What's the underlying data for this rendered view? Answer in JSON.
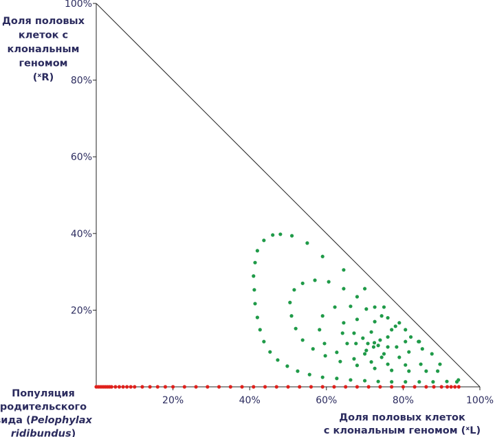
{
  "chart_data": {
    "type": "scatter",
    "y_label_lines": [
      "Доля половых",
      "клеток  с",
      "клональным",
      "геномом",
      "(ˣR)"
    ],
    "x_label_lines": [
      "Доля половых клеток",
      "с клональным геномом (ˣL)"
    ],
    "annotation_lines": [
      [
        {
          "text": "Популяция"
        }
      ],
      [
        {
          "text": "родительского"
        }
      ],
      [
        {
          "text": "вида ("
        },
        {
          "text": "Pelophylax",
          "italic": true
        }
      ],
      [
        {
          "text": "ridibundus",
          "italic": true
        },
        {
          "text": ")"
        }
      ]
    ],
    "xlim": [
      0,
      100
    ],
    "ylim": [
      0,
      100
    ],
    "xticks": [
      {
        "value": 20,
        "label": "20%"
      },
      {
        "value": 40,
        "label": "40%"
      },
      {
        "value": 60,
        "label": "60%"
      },
      {
        "value": 80,
        "label": "80%"
      },
      {
        "value": 100,
        "label": "100%"
      }
    ],
    "yticks": [
      {
        "value": 20,
        "label": "20%"
      },
      {
        "value": 40,
        "label": "40%"
      },
      {
        "value": 60,
        "label": "60%"
      },
      {
        "value": 80,
        "label": "80%"
      },
      {
        "value": 100,
        "label": "100%"
      }
    ],
    "series": [
      {
        "color": "#1f9a48",
        "x": [
          46,
          48,
          51,
          55,
          59,
          64.5,
          70,
          75,
          79,
          84,
          89.6,
          94.4,
          43.7,
          42,
          41.4,
          41,
          41.2,
          41.4,
          42,
          42.7,
          43.7,
          45.3,
          47.3,
          49.8,
          52.5,
          55.6,
          59,
          62.7,
          66.3,
          70,
          73.5,
          77,
          80.6,
          84.2,
          87.8,
          91.4,
          94,
          57,
          53.8,
          60.6,
          64.5,
          68,
          72.6,
          76,
          80.6,
          84.2,
          87.5,
          51.6,
          50.5,
          50.9,
          52,
          53.8,
          56.5,
          59.7,
          63.6,
          68,
          72.6,
          77,
          81.5,
          86,
          89,
          62.2,
          66.3,
          70.4,
          74.4,
          78,
          82,
          85,
          59,
          58.2,
          59.5,
          62.7,
          67.2,
          71.7,
          76,
          80.6,
          84.6,
          64.5,
          68,
          72.6,
          77,
          80.6,
          81.5,
          79,
          74.4,
          70,
          65.4,
          64.2,
          67.2,
          71.7,
          76,
          78.3,
          75,
          70.4,
          67.7,
          69.5,
          74,
          76,
          72.3,
          70.8,
          72.5,
          73.5
        ],
        "values": [
          39.6,
          39.8,
          39.4,
          37.5,
          34,
          30.5,
          25.6,
          20.8,
          16.7,
          11.8,
          5.9,
          1.8,
          38.2,
          35.5,
          32.4,
          28.9,
          25.3,
          21.7,
          18.1,
          14.9,
          11.8,
          9.1,
          7,
          5.4,
          4.1,
          3.2,
          2.5,
          2.2,
          1.8,
          1.6,
          1.4,
          1.3,
          1.3,
          1.3,
          1.3,
          1.4,
          1.3,
          27.8,
          27,
          27.4,
          25.6,
          23.5,
          20.8,
          18,
          14.9,
          11.8,
          8.6,
          25.3,
          22,
          18.5,
          15.2,
          12.2,
          9.9,
          8.1,
          6.6,
          5.6,
          4.8,
          4.3,
          4.1,
          4.1,
          4.1,
          20.8,
          21,
          20.3,
          18.5,
          15.8,
          13,
          9.9,
          18.5,
          14.9,
          11.3,
          9,
          7.3,
          6.5,
          5.9,
          5.7,
          5.9,
          16.7,
          17.6,
          17,
          14.9,
          11.8,
          9.1,
          7.7,
          7.7,
          8.6,
          11.3,
          14,
          14,
          14.3,
          13,
          10.4,
          8.6,
          9.5,
          11.3,
          12.7,
          12.2,
          10.4,
          10.4,
          11.3,
          11.5,
          10.8
        ]
      },
      {
        "color": "#e0201b",
        "x": [
          0,
          0.5,
          1,
          1.5,
          2,
          2.5,
          3,
          3.5,
          4,
          5,
          6,
          7,
          8,
          9,
          10,
          12,
          14,
          16,
          18,
          20,
          23,
          26,
          29,
          32,
          35,
          38,
          41,
          44,
          47,
          50,
          53,
          56,
          59,
          62,
          65,
          68,
          71,
          74,
          77,
          80,
          83,
          86,
          88,
          90,
          91.5,
          92.5,
          93.5,
          94.5
        ],
        "values": [
          0,
          0,
          0,
          0,
          0,
          0,
          0,
          0,
          0,
          0,
          0,
          0,
          0,
          0,
          0,
          0,
          0,
          0,
          0,
          0,
          0,
          0,
          0,
          0,
          0,
          0,
          0,
          0,
          0,
          0,
          0,
          0,
          0,
          0,
          0,
          0,
          0,
          0,
          0,
          0,
          0,
          0,
          0,
          0,
          0,
          0,
          0,
          0
        ]
      }
    ]
  }
}
